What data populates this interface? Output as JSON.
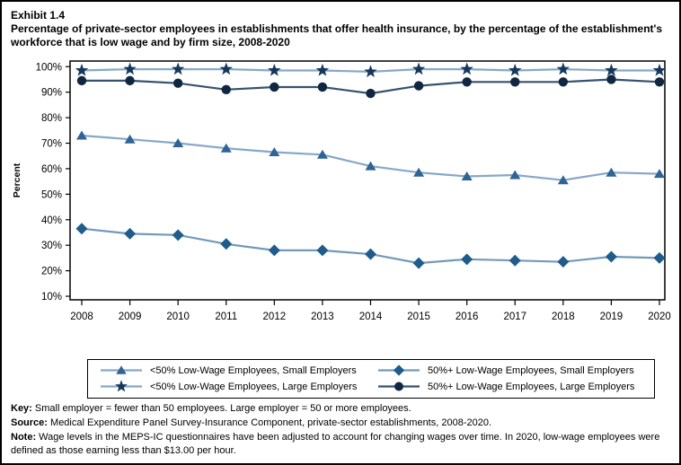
{
  "header": {
    "exhibit": "Exhibit 1.4",
    "title": "Percentage of private-sector employees in establishments that offer health insurance, by the percentage of the establishment's workforce that is low wage and by firm size,  2008-2020"
  },
  "chart_data": {
    "type": "line",
    "title": "Percentage of private-sector employees in establishments that offer health insurance, by the percentage of the establishment's workforce that is low wage and by firm size, 2008-2020",
    "x": [
      2008,
      2009,
      2010,
      2011,
      2012,
      2013,
      2014,
      2015,
      2016,
      2017,
      2018,
      2019,
      2020
    ],
    "xlabel": "",
    "ylabel": "Percent",
    "ylim": [
      8.6,
      102.2
    ],
    "yticks": [
      10,
      20,
      30,
      40,
      50,
      60,
      70,
      80,
      90,
      100
    ],
    "ytick_suffix": "%",
    "grid": false,
    "legend_position": "bottom",
    "axis_color": "#000000",
    "series": [
      {
        "name": "<50% Low-Wage Employees, Small Employers",
        "marker": "triangle",
        "marker_color": "#2e6496",
        "line_color": "#86a8c7",
        "values": [
          73,
          71.5,
          70,
          68,
          66.5,
          65.5,
          61,
          58.5,
          57,
          57.5,
          55.5,
          58.5,
          58
        ]
      },
      {
        "name": "50%+ Low-Wage Employees, Small Employers",
        "marker": "diamond",
        "marker_color": "#1f5c8b",
        "line_color": "#7399b8",
        "values": [
          36.5,
          34.5,
          34,
          30.5,
          28,
          28,
          26.5,
          23,
          24.5,
          24,
          23.5,
          25.5,
          25
        ]
      },
      {
        "name": "<50% Low-Wage Employees, Large Employers",
        "marker": "star",
        "marker_color": "#16375c",
        "line_color": "#86a8c7",
        "values": [
          98.5,
          99,
          99,
          99,
          98.5,
          98.5,
          98,
          99,
          99,
          98.5,
          99,
          98.5,
          98.5
        ]
      },
      {
        "name": "50%+ Low-Wage Employees, Large Employers",
        "marker": "circle",
        "marker_color": "#0f2740",
        "line_color": "#35526f",
        "values": [
          94.5,
          94.5,
          93.5,
          91,
          92,
          92,
          89.5,
          92.5,
          94,
          94,
          94,
          95,
          94
        ]
      }
    ],
    "legend_row_major_order": [
      0,
      1,
      2,
      3
    ]
  },
  "notes": [
    {
      "label": "Key:",
      "text": " Small employer = fewer than 50 employees. Large employer = 50 or more employees."
    },
    {
      "label": "Source:",
      "text": " Medical Expenditure Panel Survey-Insurance Component, private-sector establishments, 2008-2020."
    },
    {
      "label": "Note:",
      "text": " Wage levels in the MEPS-IC questionnaires have been adjusted to account for changing wages over time. In 2020, low-wage employees were defined as those earning less than $13.00 per hour."
    }
  ]
}
